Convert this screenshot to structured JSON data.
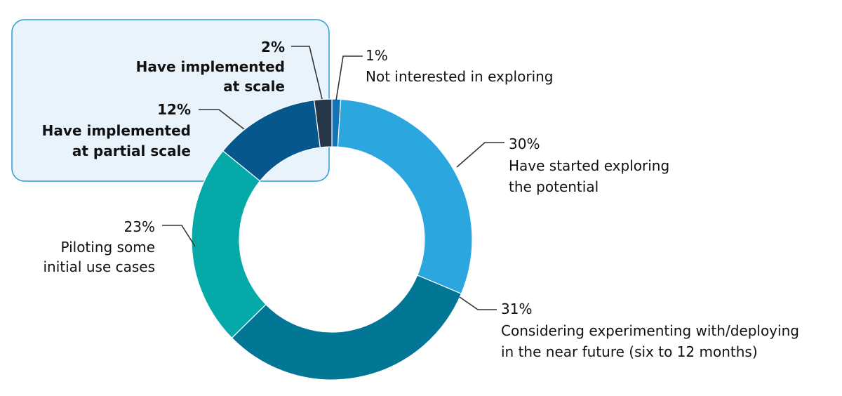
{
  "chart_data": {
    "type": "pie",
    "variant": "donut",
    "slices": [
      {
        "pct_label": "1%",
        "value": 1,
        "label_lines": [
          "Not interested in exploring"
        ],
        "color": "#1574b8",
        "bold": false
      },
      {
        "pct_label": "30%",
        "value": 30,
        "label_lines": [
          "Have started exploring",
          "the potential"
        ],
        "color": "#2ca6de",
        "bold": false
      },
      {
        "pct_label": "31%",
        "value": 31,
        "label_lines": [
          "Considering experimenting with/deploying",
          "in the near future (six to 12 months)"
        ],
        "color": "#027695",
        "bold": false
      },
      {
        "pct_label": "23%",
        "value": 23,
        "label_lines": [
          "Piloting some",
          "initial use cases"
        ],
        "color": "#05aaa8",
        "bold": false
      },
      {
        "pct_label": "12%",
        "value": 12,
        "label_lines": [
          "Have implemented",
          "at partial scale"
        ],
        "color": "#05578d",
        "bold": true
      },
      {
        "pct_label": "2%",
        "value": 2,
        "label_lines": [
          "Have implemented",
          "at scale"
        ],
        "color": "#253748",
        "bold": true
      }
    ],
    "highlight_box_fill": "#e8f3fb",
    "highlight_box_border": "#2b9bd6",
    "leader_line_color": "#333333"
  }
}
